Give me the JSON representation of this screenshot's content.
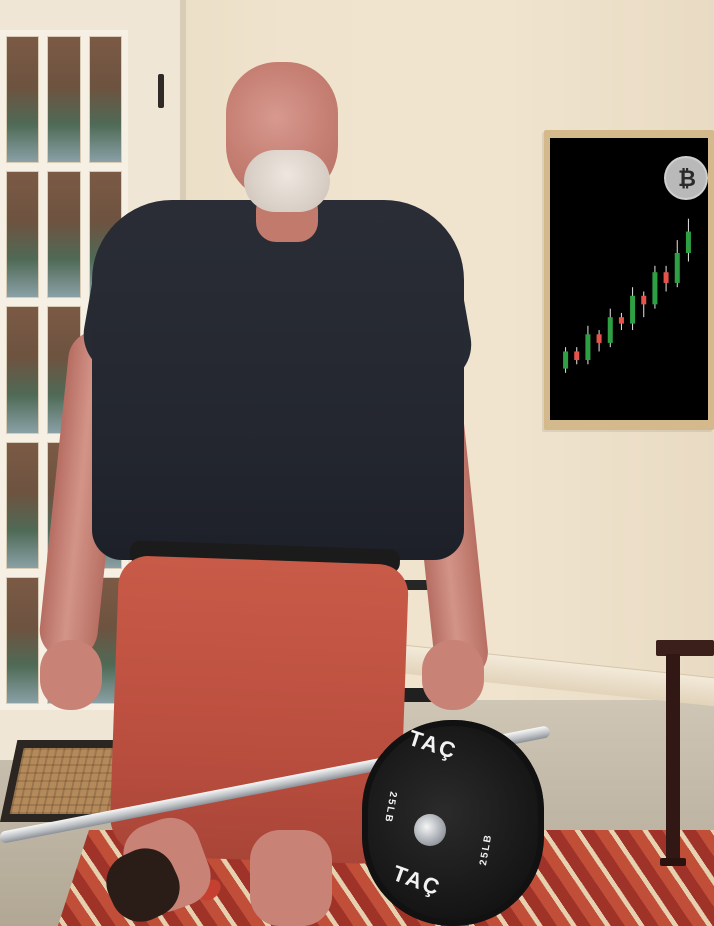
{
  "image": {
    "background_colors": {
      "wall": "#efe3cd",
      "floor": "#bdb3a2"
    }
  },
  "plate": {
    "brand_top": "TAÇ",
    "brand_bottom": "TAÇ",
    "weight_left": "25LB",
    "weight_right": "25LB"
  },
  "art": {
    "icon": "bitcoin-icon",
    "candles": [
      {
        "open": 10,
        "close": 18,
        "high": 20,
        "low": 8,
        "color": "#2ea043"
      },
      {
        "open": 18,
        "close": 14,
        "high": 20,
        "low": 12,
        "color": "#e5534b"
      },
      {
        "open": 14,
        "close": 26,
        "high": 30,
        "low": 12,
        "color": "#2ea043"
      },
      {
        "open": 26,
        "close": 22,
        "high": 28,
        "low": 18,
        "color": "#e5534b"
      },
      {
        "open": 22,
        "close": 34,
        "high": 38,
        "low": 20,
        "color": "#2ea043"
      },
      {
        "open": 34,
        "close": 31,
        "high": 36,
        "low": 28,
        "color": "#e5534b"
      },
      {
        "open": 31,
        "close": 44,
        "high": 48,
        "low": 28,
        "color": "#2ea043"
      },
      {
        "open": 44,
        "close": 40,
        "high": 46,
        "low": 34,
        "color": "#e5534b"
      },
      {
        "open": 40,
        "close": 55,
        "high": 58,
        "low": 38,
        "color": "#2ea043"
      },
      {
        "open": 55,
        "close": 50,
        "high": 58,
        "low": 46,
        "color": "#e5534b"
      },
      {
        "open": 50,
        "close": 64,
        "high": 70,
        "low": 48,
        "color": "#2ea043"
      },
      {
        "open": 64,
        "close": 74,
        "high": 80,
        "low": 60,
        "color": "#2ea043"
      }
    ]
  }
}
